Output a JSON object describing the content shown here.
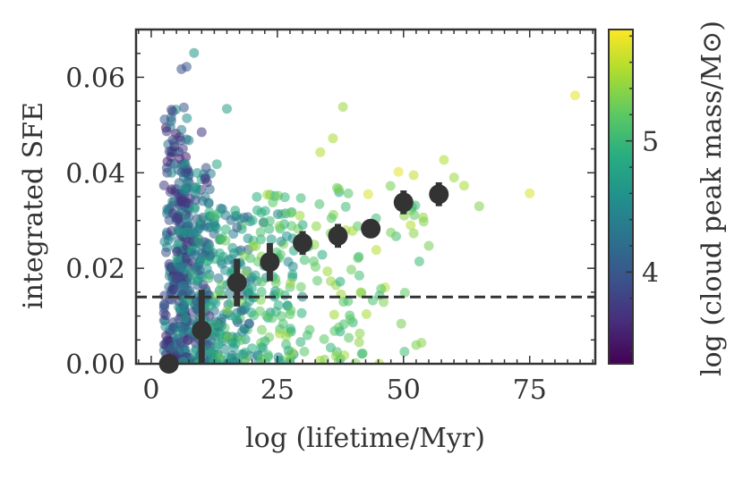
{
  "chart_data": {
    "type": "scatter",
    "xlabel": "log (lifetime/Myr)",
    "ylabel": "integrated SFE",
    "colorbar_label": "log (cloud peak mass/M⊙)",
    "xlim": [
      -3,
      88
    ],
    "ylim": [
      0.0,
      0.07
    ],
    "xticks": [
      0,
      25,
      50,
      75
    ],
    "xtick_labels": [
      "0",
      "25",
      "50",
      "75"
    ],
    "yticks": [
      0.0,
      0.02,
      0.04,
      0.06
    ],
    "ytick_labels": [
      "0.00",
      "0.02",
      "0.04",
      "0.06"
    ],
    "colorbar": {
      "range": [
        3.3,
        5.85
      ],
      "ticks": [
        4,
        5
      ],
      "tick_labels": [
        "4",
        "5"
      ],
      "colormap": "viridis"
    },
    "reference_line": {
      "y": 0.014,
      "style": "dashed",
      "color": "#333333"
    },
    "binned_medians": {
      "color": "#333333",
      "points": [
        {
          "x": 3.5,
          "y": 0.0,
          "err_low": 0.0,
          "err_high": 0.0
        },
        {
          "x": 10.0,
          "y": 0.007,
          "err_low": 0.007,
          "err_high": 0.0085
        },
        {
          "x": 17.0,
          "y": 0.017,
          "err_low": 0.005,
          "err_high": 0.005
        },
        {
          "x": 23.5,
          "y": 0.0213,
          "err_low": 0.004,
          "err_high": 0.004
        },
        {
          "x": 30.0,
          "y": 0.0253,
          "err_low": 0.0025,
          "err_high": 0.0025
        },
        {
          "x": 37.0,
          "y": 0.0268,
          "err_low": 0.0025,
          "err_high": 0.0025
        },
        {
          "x": 43.5,
          "y": 0.0283,
          "err_low": 0.0015,
          "err_high": 0.0015
        },
        {
          "x": 50.0,
          "y": 0.0338,
          "err_low": 0.0025,
          "err_high": 0.0025
        },
        {
          "x": 57.0,
          "y": 0.0355,
          "err_low": 0.0025,
          "err_high": 0.0025
        }
      ]
    },
    "highlighted_points": [
      {
        "x": 84.0,
        "y": 0.0562,
        "c": 5.75
      },
      {
        "x": 75.0,
        "y": 0.0357,
        "c": 5.7
      },
      {
        "x": 65.0,
        "y": 0.033,
        "c": 5.35
      },
      {
        "x": 62.0,
        "y": 0.0373,
        "c": 5.5
      },
      {
        "x": 60.0,
        "y": 0.039,
        "c": 5.45
      },
      {
        "x": 58.0,
        "y": 0.0427,
        "c": 5.55
      },
      {
        "x": 52.0,
        "y": 0.0395,
        "c": 5.6
      },
      {
        "x": 49.0,
        "y": 0.0402,
        "c": 5.75
      },
      {
        "x": 43.0,
        "y": 0.0355,
        "c": 5.7
      },
      {
        "x": 38.0,
        "y": 0.0538,
        "c": 5.45
      },
      {
        "x": 36.0,
        "y": 0.0472,
        "c": 5.5
      },
      {
        "x": 33.5,
        "y": 0.0443,
        "c": 5.55
      },
      {
        "x": 8.5,
        "y": 0.0651,
        "c": 4.6
      },
      {
        "x": 7.0,
        "y": 0.0622,
        "c": 4.0
      },
      {
        "x": 6.0,
        "y": 0.0617,
        "c": 3.9
      },
      {
        "x": 15.0,
        "y": 0.0534,
        "c": 4.7
      },
      {
        "x": 13.0,
        "y": 0.0418,
        "c": 4.8
      },
      {
        "x": 10.0,
        "y": 0.0485,
        "c": 3.7
      },
      {
        "x": 4.0,
        "y": 0.0532,
        "c": 3.85
      },
      {
        "x": 47.5,
        "y": 0.0275,
        "c": 5.3
      },
      {
        "x": 52.0,
        "y": 0.0273,
        "c": 5.4
      },
      {
        "x": 55.0,
        "y": 0.0247,
        "c": 5.3
      },
      {
        "x": 54.0,
        "y": 0.0298,
        "c": 5.35
      },
      {
        "x": 39.0,
        "y": 0.0131,
        "c": 5.1
      }
    ],
    "cloud_regions": [
      {
        "x_min": 2.5,
        "x_max": 7.5,
        "y_max": 0.054,
        "c_range": [
          3.4,
          4.6
        ],
        "n": 230
      },
      {
        "x_min": 5.0,
        "x_max": 12.0,
        "y_max": 0.042,
        "c_range": [
          3.6,
          4.9
        ],
        "n": 200
      },
      {
        "x_min": 8.0,
        "x_max": 20.0,
        "y_max": 0.033,
        "c_range": [
          4.0,
          5.1
        ],
        "n": 170
      },
      {
        "x_min": 12.0,
        "x_max": 30.0,
        "y_max": 0.032,
        "c_range": [
          4.4,
          5.35
        ],
        "n": 130
      },
      {
        "x_min": 20.0,
        "x_max": 42.0,
        "y_max": 0.037,
        "c_range": [
          4.8,
          5.5
        ],
        "n": 80
      },
      {
        "x_min": 30.0,
        "x_max": 55.0,
        "y_max": 0.038,
        "c_range": [
          5.0,
          5.6
        ],
        "n": 40
      }
    ]
  }
}
